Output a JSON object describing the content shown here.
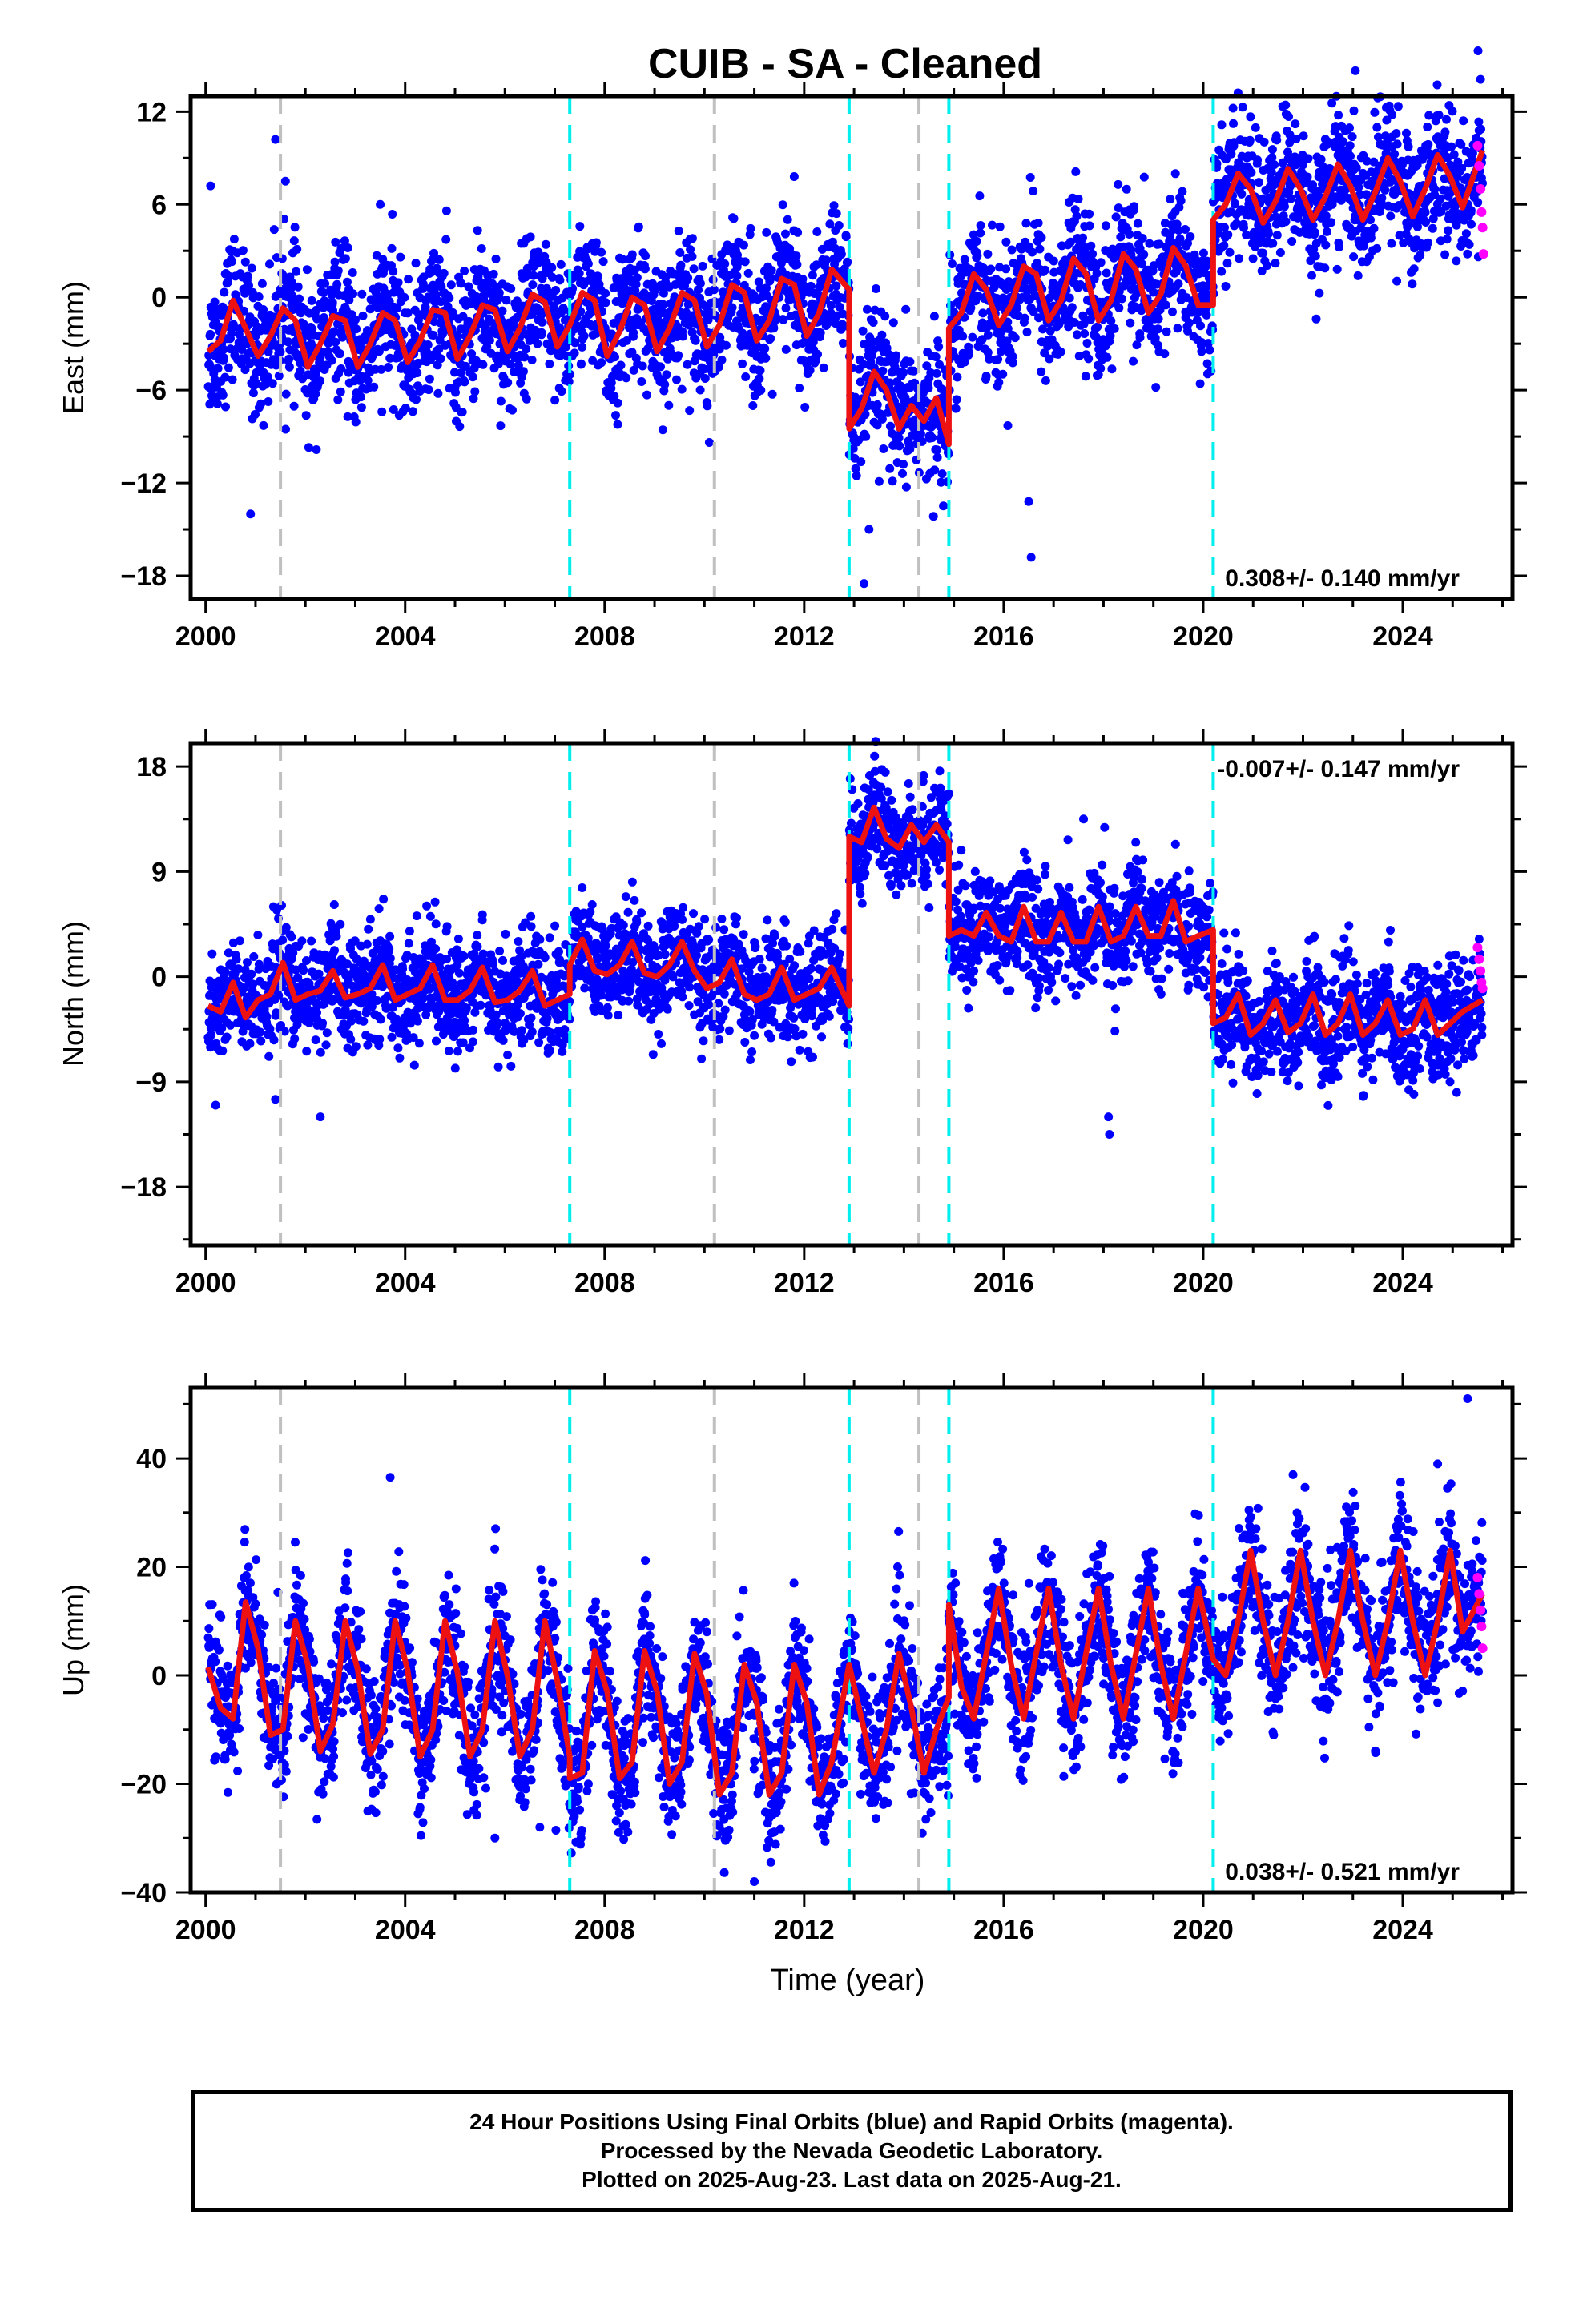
{
  "figure": {
    "title": "CUIB  - SA - Cleaned",
    "x_axis_label": "Time (year)"
  },
  "footer": {
    "line1": "24 Hour Positions Using Final Orbits (blue) and Rapid Orbits (magenta).",
    "line2": "Processed by the Nevada Geodetic Laboratory.",
    "line3": "Plotted on 2025-Aug-23. Last data on 2025-Aug-21."
  },
  "colors": {
    "final_orbits": "#0000ff",
    "rapid_orbits": "#ff00ff",
    "model_fit": "#ee1111",
    "equipment_change": "#c0c0c0",
    "earthquake": "#00eeee"
  },
  "chart_data": [
    {
      "type": "scatter",
      "component": "east",
      "ylabel": "East (mm)",
      "xlim": [
        1999.7,
        2026.2
      ],
      "ylim": [
        -19.5,
        13
      ],
      "xticks": [
        "2000",
        "2004",
        "2008",
        "2012",
        "2016",
        "2020",
        "2024"
      ],
      "yticks": [
        "12",
        "6",
        "0",
        "-6",
        "-12",
        "-18"
      ],
      "rate_text": "0.308+/- 0.140 mm/yr",
      "rate_position": "bottom-right",
      "grey_dashed_lines": [
        2001.5,
        2010.2,
        2014.3
      ],
      "cyan_dashed_lines": [
        2007.3,
        2012.9,
        2014.9,
        2020.2
      ],
      "model_segments": [
        {
          "x": [
            2000.05,
            2000.3,
            2000.55,
            2000.8,
            2001.05,
            2001.3,
            2001.55,
            2001.8,
            2002.05,
            2002.3,
            2002.55,
            2002.8,
            2003.05,
            2003.3,
            2003.55,
            2003.8,
            2004.05,
            2004.3,
            2004.55,
            2004.8,
            2005.05,
            2005.3,
            2005.55,
            2005.8,
            2006.05,
            2006.3,
            2006.55,
            2006.8,
            2007.05,
            2007.3,
            2007.55,
            2007.8,
            2008.05,
            2008.3,
            2008.55,
            2008.8,
            2009.05,
            2009.3,
            2009.55,
            2009.8,
            2010.05,
            2010.3,
            2010.55,
            2010.8,
            2011.05,
            2011.3,
            2011.55,
            2011.8,
            2012.05,
            2012.3,
            2012.55,
            2012.9
          ],
          "y": [
            -3.5,
            -2.8,
            -0.2,
            -2.0,
            -3.8,
            -2.5,
            -0.7,
            -1.5,
            -4.5,
            -3.0,
            -1.2,
            -1.5,
            -4.5,
            -3.0,
            -1.0,
            -1.5,
            -4.2,
            -2.8,
            -0.8,
            -1.0,
            -4.0,
            -2.5,
            -0.5,
            -0.8,
            -3.5,
            -2.0,
            0.2,
            -0.3,
            -3.2,
            -1.8,
            0.3,
            -0.2,
            -3.8,
            -2.2,
            0.0,
            -0.5,
            -3.5,
            -2.0,
            0.3,
            -0.2,
            -3.2,
            -1.8,
            0.8,
            0.3,
            -2.8,
            -1.5,
            1.2,
            0.8,
            -2.5,
            -1.0,
            1.8,
            0.5
          ]
        },
        {
          "x": [
            2012.9,
            2013.15,
            2013.4,
            2013.65,
            2013.9,
            2014.15,
            2014.4,
            2014.65,
            2014.9
          ],
          "y": [
            -8.5,
            -7.2,
            -4.8,
            -6.0,
            -8.5,
            -7.0,
            -8.0,
            -6.5,
            -9.5
          ]
        },
        {
          "x": [
            2014.9,
            2015.15,
            2015.4,
            2015.65,
            2015.9,
            2016.15,
            2016.4,
            2016.65,
            2016.9,
            2017.15,
            2017.4,
            2017.65,
            2017.9,
            2018.15,
            2018.4,
            2018.65,
            2018.9,
            2019.15,
            2019.4,
            2019.65,
            2019.9,
            2020.2
          ],
          "y": [
            -2.0,
            -1.0,
            1.5,
            0.5,
            -1.8,
            -0.5,
            2.0,
            1.5,
            -1.5,
            -0.2,
            2.5,
            1.5,
            -1.5,
            -0.2,
            2.8,
            1.8,
            -1.0,
            0.2,
            3.2,
            2.0,
            -0.5,
            -0.5
          ]
        },
        {
          "x": [
            2020.2,
            2020.45,
            2020.7,
            2020.95,
            2021.2,
            2021.45,
            2021.7,
            2021.95,
            2022.2,
            2022.45,
            2022.7,
            2022.95,
            2023.2,
            2023.45,
            2023.7,
            2023.95,
            2024.2,
            2024.45,
            2024.7,
            2024.95,
            2025.2,
            2025.6
          ],
          "y": [
            5.0,
            6.0,
            8.0,
            7.0,
            4.8,
            6.2,
            8.3,
            7.0,
            5.0,
            6.5,
            8.6,
            7.2,
            5.0,
            6.8,
            9.0,
            7.5,
            5.2,
            7.0,
            9.2,
            7.8,
            5.8,
            9.5
          ]
        }
      ],
      "scatter_spread_mm": 2.2,
      "rapid_orbit_points": {
        "x": [
          2025.5,
          2025.53,
          2025.56,
          2025.58,
          2025.6,
          2025.62
        ],
        "y": [
          9.8,
          8.5,
          7.0,
          5.5,
          4.5,
          2.8
        ]
      },
      "outliers": {
        "x": [
          2000.1,
          2000.9,
          2001.4,
          2001.6,
          2003.5,
          2011.8,
          2013.2,
          2016.5,
          2016.55,
          2013.3
        ],
        "y": [
          7.2,
          -14.0,
          10.2,
          7.5,
          6.0,
          7.8,
          -18.5,
          -13.2,
          -16.8,
          -15.0
        ]
      }
    },
    {
      "type": "scatter",
      "component": "north",
      "ylabel": "North (mm)",
      "xlim": [
        1999.7,
        2026.2
      ],
      "ylim": [
        -23,
        20
      ],
      "xticks": [
        "2000",
        "2004",
        "2008",
        "2012",
        "2016",
        "2020",
        "2024"
      ],
      "yticks": [
        "18",
        "9",
        "0",
        "-9",
        "-18"
      ],
      "rate_text": "-0.007+/- 0.147 mm/yr",
      "rate_position": "top-right",
      "grey_dashed_lines": [
        2001.5,
        2010.2,
        2014.3
      ],
      "cyan_dashed_lines": [
        2007.3,
        2012.9,
        2014.9,
        2020.2
      ],
      "model_segments": [
        {
          "x": [
            2000.05,
            2000.3,
            2000.55,
            2000.8,
            2001.05,
            2001.3,
            2001.55,
            2001.8,
            2002.05,
            2002.3,
            2002.55,
            2002.8,
            2003.05,
            2003.3,
            2003.55,
            2003.8,
            2004.05,
            2004.3,
            2004.55,
            2004.8,
            2005.05,
            2005.3,
            2005.55,
            2005.8,
            2006.05,
            2006.3,
            2006.55,
            2006.8,
            2007.05,
            2007.3
          ],
          "y": [
            -2.5,
            -3.0,
            -0.5,
            -3.5,
            -2.0,
            -1.5,
            1.2,
            -2.0,
            -1.5,
            -1.2,
            0.5,
            -1.8,
            -1.5,
            -1.0,
            1.0,
            -2.0,
            -1.5,
            -1.0,
            1.0,
            -2.0,
            -2.0,
            -1.2,
            0.8,
            -2.2,
            -2.0,
            -1.2,
            0.5,
            -2.5,
            -2.0,
            -1.5
          ]
        },
        {
          "x": [
            2007.3,
            2007.55,
            2007.8,
            2008.05,
            2008.3,
            2008.55,
            2008.8,
            2009.05,
            2009.3,
            2009.55,
            2009.8,
            2010.05,
            2010.3,
            2010.55,
            2010.8,
            2011.05,
            2011.3,
            2011.55,
            2011.8,
            2012.05,
            2012.3,
            2012.55,
            2012.9
          ],
          "y": [
            1.0,
            3.2,
            0.5,
            0.2,
            1.0,
            3.0,
            0.3,
            0.0,
            1.0,
            3.0,
            0.5,
            -1.0,
            -0.5,
            1.5,
            -1.5,
            -2.0,
            -1.5,
            0.8,
            -2.0,
            -1.5,
            -1.0,
            0.8,
            -2.5
          ]
        },
        {
          "x": [
            2012.9,
            2013.15,
            2013.4,
            2013.65,
            2013.9,
            2014.15,
            2014.4,
            2014.65,
            2014.9
          ],
          "y": [
            12.0,
            11.5,
            14.5,
            11.8,
            11.0,
            13.0,
            11.5,
            13.0,
            11.5
          ]
        },
        {
          "x": [
            2014.9,
            2015.15,
            2015.4,
            2015.65,
            2015.9,
            2016.15,
            2016.4,
            2016.65,
            2016.9,
            2017.15,
            2017.4,
            2017.65,
            2017.9,
            2018.15,
            2018.4,
            2018.65,
            2018.9,
            2019.15,
            2019.4,
            2019.65,
            2019.9,
            2020.2
          ],
          "y": [
            3.5,
            4.0,
            3.5,
            5.5,
            3.5,
            3.0,
            6.0,
            3.0,
            3.0,
            5.5,
            3.0,
            3.0,
            6.0,
            3.0,
            3.5,
            6.0,
            3.5,
            3.5,
            6.5,
            3.0,
            3.5,
            4.0
          ]
        },
        {
          "x": [
            2020.2,
            2020.45,
            2020.7,
            2020.95,
            2021.2,
            2021.45,
            2021.7,
            2021.95,
            2022.2,
            2022.45,
            2022.7,
            2022.95,
            2023.2,
            2023.45,
            2023.7,
            2023.95,
            2024.2,
            2024.45,
            2024.7,
            2024.95,
            2025.2,
            2025.6
          ],
          "y": [
            -4.0,
            -3.5,
            -1.5,
            -5.0,
            -4.0,
            -2.0,
            -4.8,
            -4.0,
            -1.5,
            -5.0,
            -4.0,
            -1.5,
            -5.0,
            -4.0,
            -2.0,
            -5.0,
            -4.5,
            -2.0,
            -5.0,
            -4.0,
            -3.0,
            -2.0
          ]
        }
      ],
      "scatter_spread_mm": 2.3,
      "rapid_orbit_points": {
        "x": [
          2025.5,
          2025.53,
          2025.56,
          2025.58,
          2025.6
        ],
        "y": [
          2.5,
          1.5,
          0.5,
          -0.5,
          -1.0
        ]
      },
      "outliers": {
        "x": [
          2000.2,
          2001.4,
          2002.3,
          2017.6,
          2018.1,
          2018.12
        ],
        "y": [
          -11.0,
          -10.5,
          -12.0,
          13.5,
          -12.0,
          -13.5
        ]
      }
    },
    {
      "type": "scatter",
      "component": "up",
      "ylabel": "Up (mm)",
      "xlim": [
        1999.7,
        2026.2
      ],
      "ylim": [
        -40,
        53
      ],
      "xticks": [
        "2000",
        "2004",
        "2008",
        "2012",
        "2016",
        "2020",
        "2024"
      ],
      "yticks": [
        "40",
        "20",
        "0",
        "-20",
        "-40"
      ],
      "rate_text": "0.038+/- 0.521 mm/yr",
      "rate_position": "bottom-right",
      "grey_dashed_lines": [
        2001.5,
        2010.2,
        2014.3
      ],
      "cyan_dashed_lines": [
        2007.3,
        2012.9,
        2014.9,
        2020.2
      ],
      "model_segments": [
        {
          "x": [
            2000.05,
            2000.3,
            2000.55,
            2000.8,
            2001.05,
            2001.3,
            2001.55,
            2001.8,
            2002.05,
            2002.3,
            2002.55,
            2002.8,
            2003.05,
            2003.3,
            2003.55,
            2003.8,
            2004.05,
            2004.3,
            2004.55,
            2004.8,
            2005.05,
            2005.3,
            2005.55,
            2005.8,
            2006.05,
            2006.3,
            2006.55,
            2006.8,
            2007.05,
            2007.3
          ],
          "y": [
            1.5,
            -6.0,
            -8.0,
            13.5,
            5.0,
            -11.0,
            -10.0,
            10.0,
            2.0,
            -14.0,
            -9.0,
            10.0,
            1.0,
            -14.5,
            -10.0,
            10.0,
            1.0,
            -15.0,
            -10.0,
            10.0,
            0.5,
            -15.0,
            -10.0,
            10.0,
            0.0,
            -15.0,
            -10.0,
            10.0,
            -1.0,
            -15.0
          ]
        },
        {
          "x": [
            2007.3,
            2007.55,
            2007.8,
            2008.05,
            2008.3,
            2008.55,
            2008.8,
            2009.05,
            2009.3,
            2009.55,
            2009.8,
            2010.05,
            2010.3,
            2010.55,
            2010.8,
            2011.05,
            2011.3,
            2011.55,
            2011.8,
            2012.05,
            2012.3,
            2012.55,
            2012.9
          ],
          "y": [
            -19.0,
            -18.0,
            4.5,
            -3.0,
            -19.0,
            -16.0,
            4.5,
            -3.0,
            -20.0,
            -16.0,
            4.0,
            -3.5,
            -22.0,
            -18.0,
            2.0,
            -5.0,
            -22.0,
            -18.0,
            2.0,
            -5.0,
            -22.0,
            -16.0,
            2.0
          ]
        },
        {
          "x": [
            2012.9,
            2013.15,
            2013.4,
            2013.65,
            2013.9,
            2014.15,
            2014.4,
            2014.65,
            2014.9
          ],
          "y": [
            2.0,
            -8.0,
            -18.0,
            -10.0,
            4.0,
            -6.0,
            -18.0,
            -10.0,
            -4.0
          ]
        },
        {
          "x": [
            2014.9,
            2015.15,
            2015.4,
            2015.65,
            2015.9,
            2016.15,
            2016.4,
            2016.65,
            2016.9,
            2017.15,
            2017.4,
            2017.65,
            2017.9,
            2018.15,
            2018.4,
            2018.65,
            2018.9,
            2019.15,
            2019.4,
            2019.65,
            2019.9,
            2020.2
          ],
          "y": [
            13.0,
            -2.0,
            -8.0,
            4.0,
            16.0,
            2.0,
            -8.0,
            4.0,
            16.0,
            2.0,
            -8.0,
            4.0,
            16.0,
            2.0,
            -8.0,
            4.0,
            16.0,
            2.0,
            -8.0,
            4.0,
            16.0,
            3.0
          ]
        },
        {
          "x": [
            2020.2,
            2020.45,
            2020.7,
            2020.95,
            2021.2,
            2021.45,
            2021.7,
            2021.95,
            2022.2,
            2022.45,
            2022.7,
            2022.95,
            2023.2,
            2023.45,
            2023.7,
            2023.95,
            2024.2,
            2024.45,
            2024.7,
            2024.95,
            2025.2,
            2025.6
          ],
          "y": [
            3.0,
            0.0,
            10.0,
            23.0,
            10.0,
            0.0,
            10.0,
            23.0,
            10.0,
            0.0,
            10.0,
            23.0,
            10.0,
            0.0,
            10.0,
            23.0,
            10.0,
            0.0,
            10.0,
            23.0,
            8.0,
            15.0
          ]
        }
      ],
      "scatter_spread_mm": 6.0,
      "rapid_orbit_points": {
        "x": [
          2025.5,
          2025.53,
          2025.56,
          2025.58,
          2025.6
        ],
        "y": [
          18.0,
          15.0,
          12.0,
          9.0,
          5.0
        ]
      },
      "outliers": {
        "x": [
          2003.7,
          2005.8,
          2006.7,
          2011.0,
          2021.8,
          2024.7,
          2025.3
        ],
        "y": [
          36.5,
          -30.0,
          -28.0,
          -38.0,
          37.0,
          39.0,
          51.0
        ]
      }
    }
  ]
}
